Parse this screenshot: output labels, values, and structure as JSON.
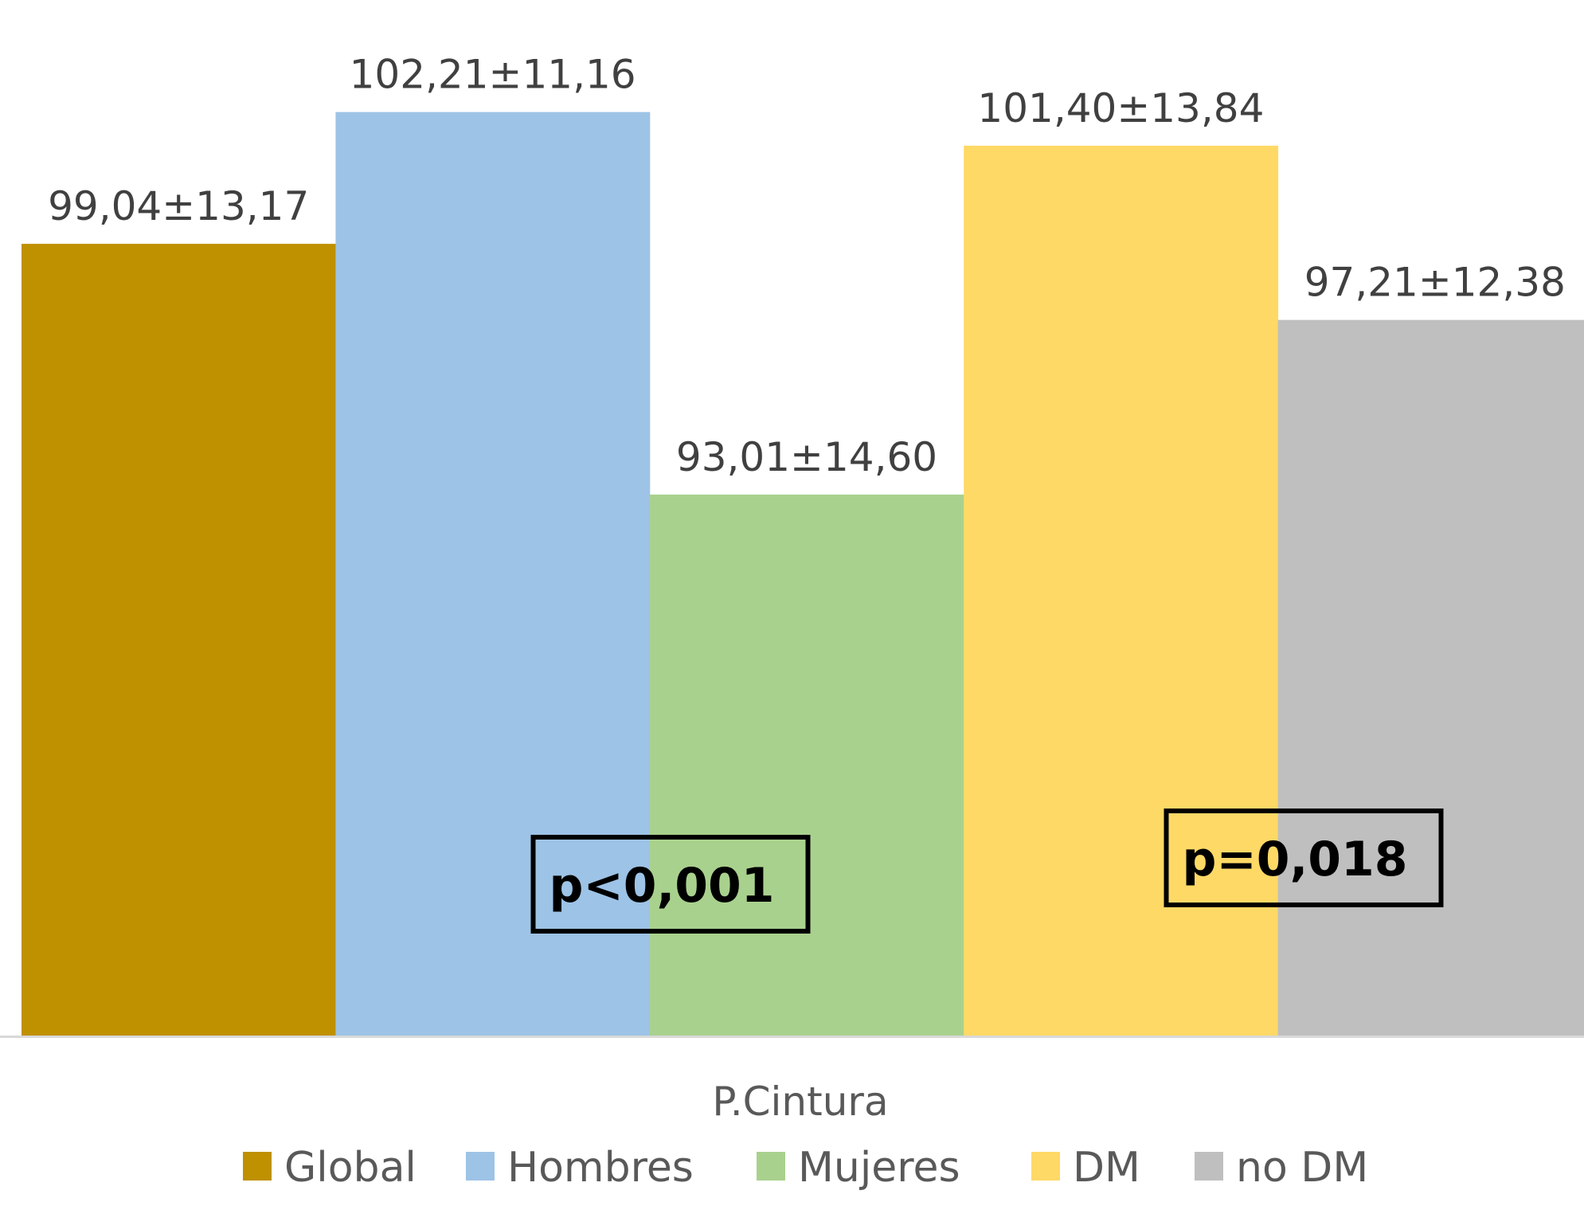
{
  "chart_data": {
    "type": "bar",
    "categories": [
      "P.Cintura"
    ],
    "series": [
      {
        "name": "Global",
        "values": [
          99.04
        ],
        "label": "99,04±13,17",
        "color": "#BF9000"
      },
      {
        "name": "Hombres",
        "values": [
          102.21
        ],
        "label": "102,21±11,16",
        "color": "#9DC3E6"
      },
      {
        "name": "Mujeres",
        "values": [
          93.01
        ],
        "label": "93,01±14,60",
        "color": "#A9D18E"
      },
      {
        "name": "DM",
        "values": [
          101.4
        ],
        "label": "101,40±13,84",
        "color": "#FFD966"
      },
      {
        "name": "no DM",
        "values": [
          97.21
        ],
        "label": "97,21±12,38",
        "color": "#BFBFBF"
      }
    ],
    "annotations": [
      {
        "text": "p<0,001",
        "between": [
          "Hombres",
          "Mujeres"
        ]
      },
      {
        "text": "p=0,018",
        "between": [
          "DM",
          "no DM"
        ]
      }
    ],
    "ylim": [
      80,
      105
    ],
    "grid": false,
    "legend": "bottom"
  }
}
